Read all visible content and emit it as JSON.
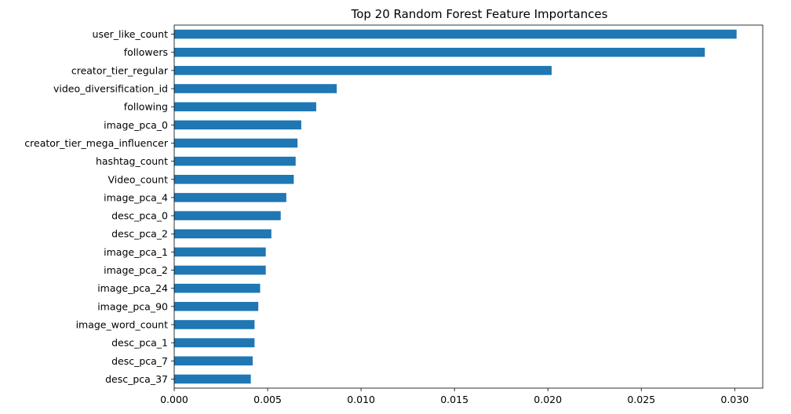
{
  "chart_data": {
    "type": "bar",
    "orientation": "horizontal",
    "title": "Top 20 Random Forest Feature Importances",
    "xlabel": "",
    "ylabel": "",
    "xlim": [
      0,
      0.0315
    ],
    "grid": false,
    "bar_color": "#1f77b4",
    "categories": [
      "user_like_count",
      "followers",
      "creator_tier_regular",
      "video_diversification_id",
      "following",
      "image_pca_0",
      "creator_tier_mega_influencer",
      "hashtag_count",
      "Video_count",
      "image_pca_4",
      "desc_pca_0",
      "desc_pca_2",
      "image_pca_1",
      "image_pca_2",
      "image_pca_24",
      "image_pca_90",
      "image_word_count",
      "desc_pca_1",
      "desc_pca_7",
      "desc_pca_37"
    ],
    "values": [
      0.0301,
      0.0284,
      0.0202,
      0.0087,
      0.0076,
      0.0068,
      0.0066,
      0.0065,
      0.0064,
      0.006,
      0.0057,
      0.0052,
      0.0049,
      0.0049,
      0.0046,
      0.0045,
      0.0043,
      0.0043,
      0.0042,
      0.0041
    ],
    "xticks": [
      0.0,
      0.005,
      0.01,
      0.015,
      0.02,
      0.025,
      0.03
    ],
    "xtick_labels": [
      "0.000",
      "0.005",
      "0.010",
      "0.015",
      "0.020",
      "0.025",
      "0.030"
    ]
  }
}
